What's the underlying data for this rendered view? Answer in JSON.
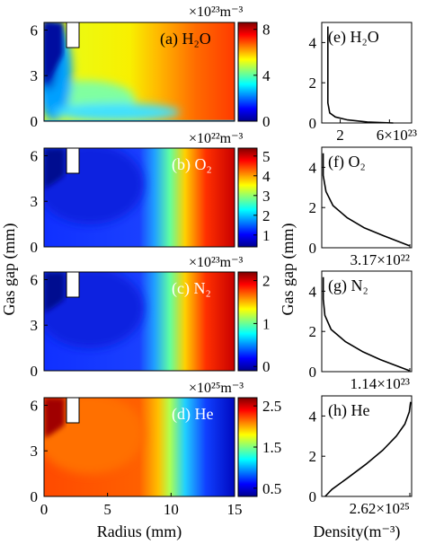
{
  "figure": {
    "ylabel_left": "Gas gap (mm)",
    "xlabel_left": "Radius (mm)",
    "ylabel_right": "Gas gap (mm)",
    "xlabel_right": "Density(m⁻³)"
  },
  "chart_data": [
    {
      "type": "heatmap",
      "panel": "(a)",
      "species": "H₂O",
      "title": "(a) H₂O",
      "multiplier": "×10²³m⁻³",
      "x_range": [
        0,
        15
      ],
      "y_range": [
        0,
        6.5
      ],
      "y_ticks": [
        0,
        3,
        6
      ],
      "colorbar_range": [
        0,
        8.6
      ],
      "colorbar_ticks": [
        "0",
        "4",
        "8"
      ],
      "colorbar_tick_values": [
        0,
        4,
        8
      ]
    },
    {
      "type": "heatmap",
      "panel": "(b)",
      "species": "O₂",
      "title": "(b) O₂",
      "multiplier": "×10²²m⁻³",
      "x_range": [
        0,
        15
      ],
      "y_range": [
        0,
        6.5
      ],
      "y_ticks": [
        0,
        3,
        6
      ],
      "colorbar_range": [
        0.4,
        5.4
      ],
      "colorbar_ticks": [
        "1",
        "2",
        "3",
        "4",
        "5"
      ],
      "colorbar_tick_values": [
        1,
        2,
        3,
        4,
        5
      ]
    },
    {
      "type": "heatmap",
      "panel": "(c)",
      "species": "N₂",
      "title": "(c) N₂",
      "multiplier": "×10²³m⁻³",
      "x_range": [
        0,
        15
      ],
      "y_range": [
        0,
        6.5
      ],
      "y_ticks": [
        0,
        3,
        6
      ],
      "colorbar_range": [
        -0.1,
        2.2
      ],
      "colorbar_ticks": [
        "0",
        "1",
        "2"
      ],
      "colorbar_tick_values": [
        0,
        1,
        2
      ]
    },
    {
      "type": "heatmap",
      "panel": "(d)",
      "species": "He",
      "title": "(d) He",
      "multiplier": "×10²⁵m⁻³",
      "x_range": [
        0,
        15
      ],
      "x_ticks": [
        0,
        5,
        10,
        15
      ],
      "y_range": [
        0,
        6.5
      ],
      "y_ticks": [
        0,
        3,
        6
      ],
      "colorbar_range": [
        0.3,
        2.7
      ],
      "colorbar_ticks": [
        "0.5",
        "1.5",
        "2.5"
      ],
      "colorbar_tick_values": [
        0.5,
        1.5,
        2.5
      ]
    },
    {
      "type": "line",
      "panel": "(e)",
      "title": "(e) H₂O",
      "x_tick_labels": [
        "2",
        "6×10²³"
      ],
      "x_ticks": [
        2,
        6
      ],
      "x_range": [
        0.5,
        7.8
      ],
      "y_range": [
        0,
        5
      ],
      "y_ticks": [
        0,
        2,
        4
      ],
      "x": [
        6.3,
        4.2,
        2.6,
        1.6,
        1.15,
        1.0,
        1.0,
        1.0
      ],
      "y": [
        0.0,
        0.05,
        0.15,
        0.3,
        0.5,
        1.0,
        3.0,
        4.8
      ]
    },
    {
      "type": "line",
      "panel": "(f)",
      "title": "(f) O₂",
      "x_tick_labels": [
        "3.17×10²²"
      ],
      "x_range": [
        0,
        3.2
      ],
      "y_range": [
        0,
        5
      ],
      "y_ticks": [
        0,
        2,
        4
      ],
      "x": [
        3.12,
        2.75,
        2.2,
        1.5,
        0.9,
        0.4,
        0.15,
        0.05,
        0.05
      ],
      "y": [
        0.1,
        0.3,
        0.6,
        1.0,
        1.5,
        2.1,
        2.8,
        3.6,
        4.7
      ]
    },
    {
      "type": "line",
      "panel": "(g)",
      "title": "(g) N₂",
      "x_tick_labels": [
        "1.14×10²³"
      ],
      "x_range": [
        0,
        1.15
      ],
      "y_range": [
        0,
        5
      ],
      "y_ticks": [
        0,
        2,
        4
      ],
      "x": [
        1.12,
        0.95,
        0.75,
        0.52,
        0.3,
        0.12,
        0.04,
        0.02,
        0.02
      ],
      "y": [
        0.05,
        0.3,
        0.6,
        1.0,
        1.5,
        2.1,
        2.8,
        3.6,
        4.7
      ]
    },
    {
      "type": "line",
      "panel": "(h)",
      "title": "(h) He",
      "x_tick_labels": [
        "2.62×10²⁵"
      ],
      "x_range": [
        0,
        2.65
      ],
      "y_range": [
        0,
        5
      ],
      "y_ticks": [
        0,
        2,
        4
      ],
      "x": [
        0.1,
        0.3,
        0.75,
        1.3,
        1.8,
        2.2,
        2.45,
        2.58,
        2.62
      ],
      "y": [
        0.0,
        0.35,
        0.9,
        1.6,
        2.3,
        3.0,
        3.6,
        4.2,
        4.7
      ]
    }
  ]
}
